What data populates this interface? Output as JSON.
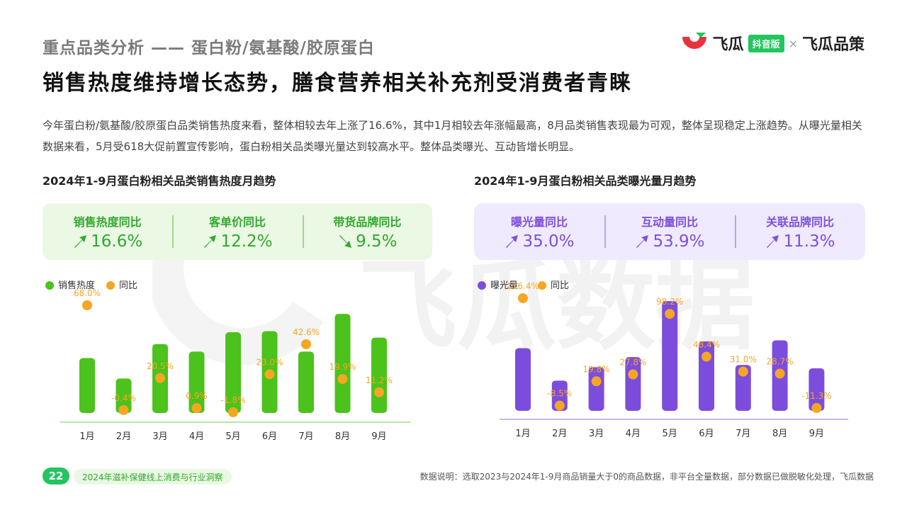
{
  "section_title": "重点品类分析 —— 蛋白粉/氨基酸/胶原蛋白",
  "headline": "销售热度维持增长态势，膳食营养相关补充剂受消费者青睐",
  "intro": "今年蛋白粉/氨基酸/胶原蛋白品类销售热度来看，整体相较去年上涨了16.6%，其中1月相较去年涨幅最高，8月品类销售表现最为可观，整体呈现稳定上涨趋势。从曝光量相关数据来看，5月受618大促前置宣传影响，蛋白粉相关品类曝光量达到较高水平。整体品类曝光、互动皆增长明显。",
  "brand": {
    "name": "飞瓜",
    "badge": "抖音版",
    "separator": "×",
    "name2": "飞瓜品策",
    "accent": "#22c55e",
    "logo_red": "#e8323c"
  },
  "watermark": "飞瓜数据",
  "left_panel": {
    "title": "2024年1-9月蛋白粉相关品类销售热度月趋势",
    "kpis": [
      {
        "label": "销售热度同比",
        "value": "16.6%",
        "icon": "trend-up-arrow-icon"
      },
      {
        "label": "客单价同比",
        "value": "12.2%",
        "icon": "trend-up-arrow-icon"
      },
      {
        "label": "带货品牌同比",
        "value": "9.5%",
        "icon": "trend-down-arrow-icon"
      }
    ]
  },
  "right_panel": {
    "title": "2024年1-9月蛋白粉相关品类曝光量月趋势",
    "kpis": [
      {
        "label": "曝光量同比",
        "value": "35.0%",
        "icon": "trend-up-arrow-icon"
      },
      {
        "label": "互动量同比",
        "value": "53.9%",
        "icon": "trend-up-arrow-icon"
      },
      {
        "label": "关联品牌同比",
        "value": "11.3%",
        "icon": "trend-up-arrow-icon"
      }
    ]
  },
  "chart_data": [
    {
      "type": "bar",
      "categories": [
        "1月",
        "2月",
        "3月",
        "4月",
        "5月",
        "6月",
        "7月",
        "8月",
        "9月"
      ],
      "series": [
        {
          "name": "销售热度",
          "color": "#4cc21c",
          "values": [
            51,
            32,
            64,
            57,
            75,
            76,
            57,
            92,
            70
          ]
        },
        {
          "name": "同比",
          "color": "#f5a623",
          "kind": "point",
          "values": [
            68.0,
            -0.4,
            20.5,
            0.9,
            -1.8,
            23.0,
            42.6,
            19.9,
            11.2
          ],
          "labels": [
            "68.0%",
            "-0.4%",
            "20.5%",
            "0.9%",
            "-1.8%",
            "23.0%",
            "42.6%",
            "19.9%",
            "11.2%"
          ]
        }
      ],
      "legend": "top-left"
    },
    {
      "type": "bar",
      "categories": [
        "1月",
        "2月",
        "3月",
        "4月",
        "5月",
        "6月",
        "7月",
        "8月",
        "9月"
      ],
      "series": [
        {
          "name": "曝光量",
          "color": "#7c4ddc",
          "values": [
            56,
            27,
            39,
            48,
            98,
            62,
            41,
            63,
            38
          ]
        },
        {
          "name": "同比",
          "color": "#f5a623",
          "kind": "point",
          "values": [
            116.4,
            -8.5,
            19.8,
            27.8,
            98.2,
            48.4,
            31.0,
            28.7,
            -11.3
          ],
          "labels": [
            "116.4%",
            "-8.5%",
            "19.8%",
            "27.8%",
            "98.2%",
            "48.4%",
            "31.0%",
            "28.7%",
            "-11.3%"
          ]
        }
      ],
      "legend": "top-left"
    }
  ],
  "footer": {
    "page": "22",
    "report": "2024年滋补保健线上消费与行业洞察",
    "note": "数据说明：选取2023与2024年1-9月商品销量大于0的商品数据，非平台全量数据，部分数据已做脱敏化处理，飞瓜数据"
  }
}
